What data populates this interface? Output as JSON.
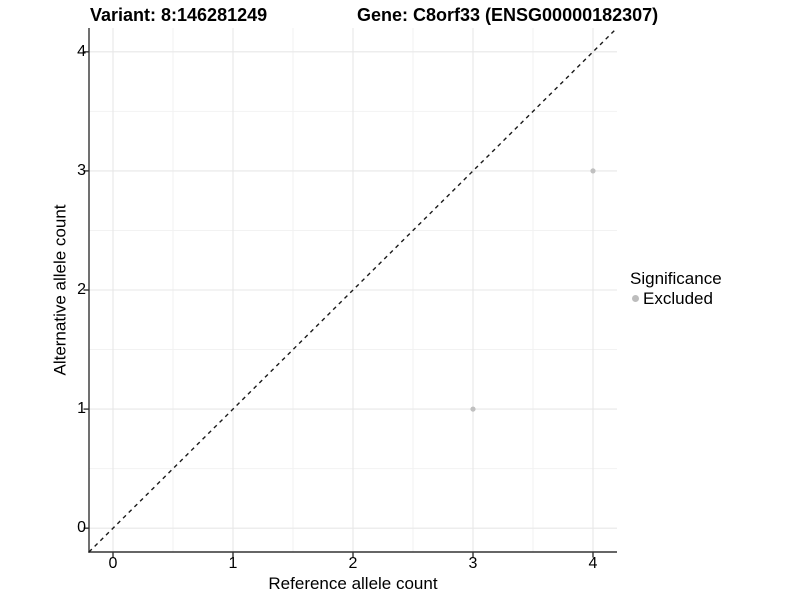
{
  "figure": {
    "background": "#ffffff",
    "axis_color": "#333333",
    "major_grid_color": "#e7e7e7",
    "minor_grid_color": "#f2f2f2",
    "reference_line_color": "#1a1a1a",
    "point_color": "#c0c0c0"
  },
  "chart_data": {
    "type": "scatter",
    "titles": {
      "left": "Variant: 8:146281249",
      "right": "Gene: C8orf33 (ENSG00000182307)"
    },
    "xlabel": "Reference allele count",
    "ylabel": "Alternative allele count",
    "xlim": [
      -0.2,
      4.2
    ],
    "ylim": [
      -0.2,
      4.2
    ],
    "xticks": [
      0,
      1,
      2,
      3,
      4
    ],
    "yticks": [
      0,
      1,
      2,
      3,
      4
    ],
    "x_minor_ticks": [
      0.5,
      1.5,
      2.5,
      3.5
    ],
    "y_minor_ticks": [
      0.5,
      1.5,
      2.5,
      3.5
    ],
    "grid": "on",
    "reference_line": {
      "type": "identity y=x",
      "style": "dashed",
      "color": "#1a1a1a"
    },
    "series": [
      {
        "name": "Excluded",
        "color": "#c0c0c0",
        "points": [
          {
            "x": 4,
            "y": 3
          },
          {
            "x": 3,
            "y": 1
          }
        ]
      }
    ],
    "legend": {
      "title": "Significance",
      "position": "right",
      "items": [
        {
          "label": "Excluded",
          "color": "#bdbdbd"
        }
      ]
    }
  }
}
